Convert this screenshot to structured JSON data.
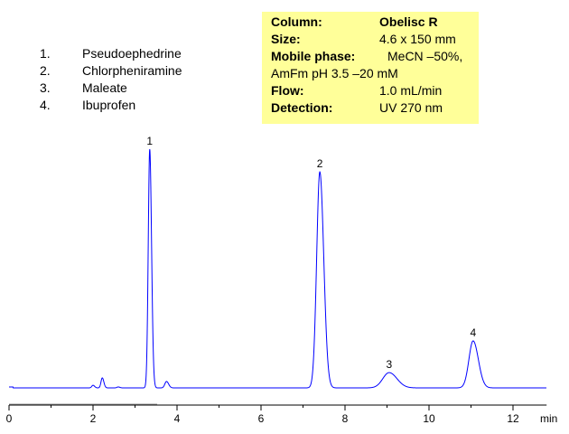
{
  "chart_data": {
    "type": "line",
    "xlabel": "min",
    "ylabel": "",
    "xlim": [
      0,
      12.8
    ],
    "xticks": [
      0,
      2,
      4,
      6,
      8,
      10,
      12
    ],
    "y_units": "relative intensity (peak 1 = 100)",
    "line_color": "#0000ff",
    "grid": false,
    "peaks": [
      {
        "label": "1",
        "rt": 3.35,
        "height": 100,
        "sigma": 0.035
      },
      {
        "label": "2",
        "rt": 7.4,
        "height": 90.5,
        "sigma": 0.075
      },
      {
        "label": "3",
        "rt": 9.05,
        "height": 6.4,
        "sigma": 0.15
      },
      {
        "label": "4",
        "rt": 11.05,
        "height": 19.7,
        "sigma": 0.1
      }
    ],
    "minor_peaks": [
      {
        "rt": 2.0,
        "height": 1.1,
        "sigma": 0.03
      },
      {
        "rt": 2.22,
        "height": 4.2,
        "sigma": 0.03
      },
      {
        "rt": 2.6,
        "height": 0.4,
        "sigma": 0.03
      },
      {
        "rt": 3.75,
        "height": 2.7,
        "sigma": 0.04
      }
    ]
  },
  "legend": [
    {
      "num": "1.",
      "name": "Pseudoephedrine"
    },
    {
      "num": "2.",
      "name": "Chlorpheniramine"
    },
    {
      "num": "3.",
      "name": "Maleate"
    },
    {
      "num": "4.",
      "name": "Ibuprofen"
    }
  ],
  "conditions": {
    "column_label": "Column:",
    "column_value": "Obelisc R",
    "size_label": "Size:",
    "size_value": "4.6 x 150 mm",
    "mobile_label": "Mobile phase:",
    "mobile_value": "MeCN –50%,",
    "mobile_value2": "AmFm pH 3.5 –20 mM",
    "flow_label": "Flow:",
    "flow_value": "1.0 mL/min",
    "detection_label": "Detection:",
    "detection_value": "UV 270 nm",
    "background_color": "#ffff99"
  }
}
